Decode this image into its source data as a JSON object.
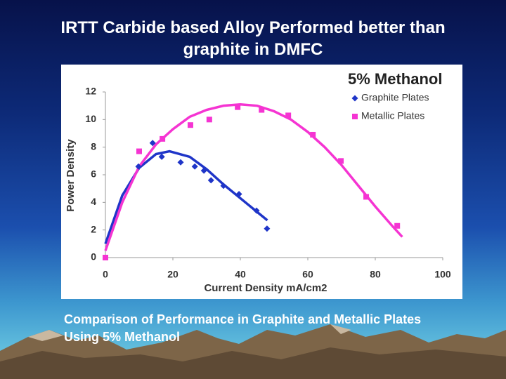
{
  "slide": {
    "title": "IRTT Carbide based Alloy Performed better than graphite in DMFC",
    "caption": "Comparison of Performance in Graphite and Metallic Plates Using 5% Methanol"
  },
  "chart_data": {
    "type": "scatter",
    "title": "5% Methanol",
    "x_label": "Current Density mA/cm2",
    "y_label": "Power Density",
    "xlim": [
      0,
      100
    ],
    "xticks": [
      0,
      20,
      40,
      60,
      80,
      100
    ],
    "ylim": [
      0,
      12
    ],
    "yticks": [
      0,
      2,
      4,
      6,
      8,
      10,
      12
    ],
    "legend": "top-right",
    "series": [
      {
        "name": "Graphite Plates",
        "color": "#1f35c8",
        "marker": "diamond",
        "x": [
          9.8,
          14,
          16.7,
          22.3,
          26.5,
          29.2,
          31.3,
          35,
          39.6,
          44.8,
          47.9
        ],
        "values": [
          6.6,
          8.3,
          7.3,
          6.9,
          6.6,
          6.3,
          5.6,
          5.2,
          4.6,
          3.4,
          2.1
        ],
        "trend_x": [
          0,
          5,
          10,
          15,
          19,
          25,
          30,
          35,
          40,
          45,
          48
        ],
        "trend_values": [
          1,
          4.5,
          6.5,
          7.5,
          7.7,
          7.3,
          6.4,
          5.3,
          4.3,
          3.3,
          2.7
        ]
      },
      {
        "name": "Metallic Plates",
        "color": "#f534d2",
        "marker": "square",
        "x": [
          0,
          10,
          16.9,
          25.2,
          30.8,
          39.2,
          46.3,
          54.2,
          61.5,
          69.8,
          77.3,
          86.5
        ],
        "values": [
          0,
          7.7,
          8.6,
          9.6,
          10,
          10.9,
          10.7,
          10.3,
          8.9,
          7,
          4.4,
          2.3
        ],
        "trend_x": [
          0,
          5,
          10,
          15,
          20,
          25,
          30,
          35,
          40,
          45,
          50,
          55,
          60,
          65,
          70,
          75,
          80,
          85,
          88
        ],
        "trend_values": [
          0.5,
          4,
          6.6,
          8.2,
          9.3,
          10.2,
          10.7,
          11,
          11.1,
          11,
          10.6,
          10,
          9.1,
          8,
          6.7,
          5.2,
          3.7,
          2.3,
          1.5
        ]
      }
    ]
  }
}
